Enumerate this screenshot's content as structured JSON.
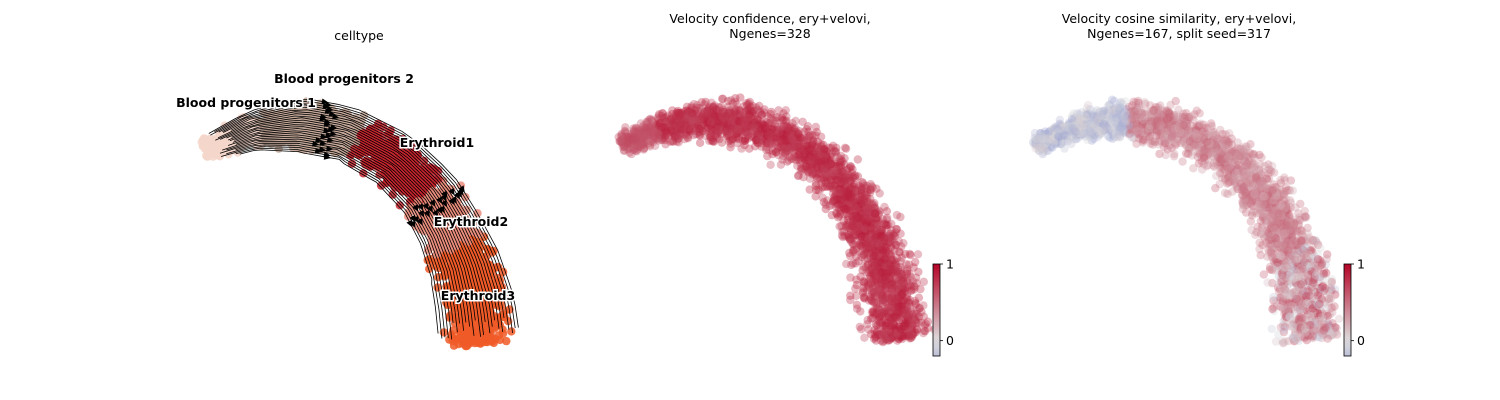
{
  "chart_data": [
    {
      "type": "scatter",
      "variant": "embedding-stream",
      "title": "celltype",
      "axes_visible": false,
      "legend": "on data",
      "cluster_labels": [
        {
          "name": "Blood progenitors 2",
          "color": "#c4a899"
        },
        {
          "name": "Blood progenitors 1",
          "color": "#f4d6ca"
        },
        {
          "name": "Erythroid1",
          "color": "#c7252e"
        },
        {
          "name": "Erythroid2",
          "color": "#ea8d7d"
        },
        {
          "name": "Erythroid3",
          "color": "#f05a28"
        }
      ],
      "streamlines": true
    },
    {
      "type": "scatter",
      "variant": "embedding-colored",
      "title": "Velocity confidence, ery+velovi,\nNgenes=328",
      "axes_visible": false,
      "colormap": "coolwarm",
      "colorbar": {
        "ticks": [
          "0",
          "1"
        ],
        "range": [
          -0.2,
          1.0
        ]
      },
      "dominant_value": 0.9
    },
    {
      "type": "scatter",
      "variant": "embedding-colored",
      "title": "Velocity cosine similarity, ery+velovi,\nNgenes=167, split seed=317",
      "axes_visible": false,
      "colormap": "coolwarm",
      "colorbar": {
        "ticks": [
          "0",
          "1"
        ],
        "range": [
          -0.2,
          1.0
        ]
      },
      "dominant_value": 0.7
    }
  ]
}
